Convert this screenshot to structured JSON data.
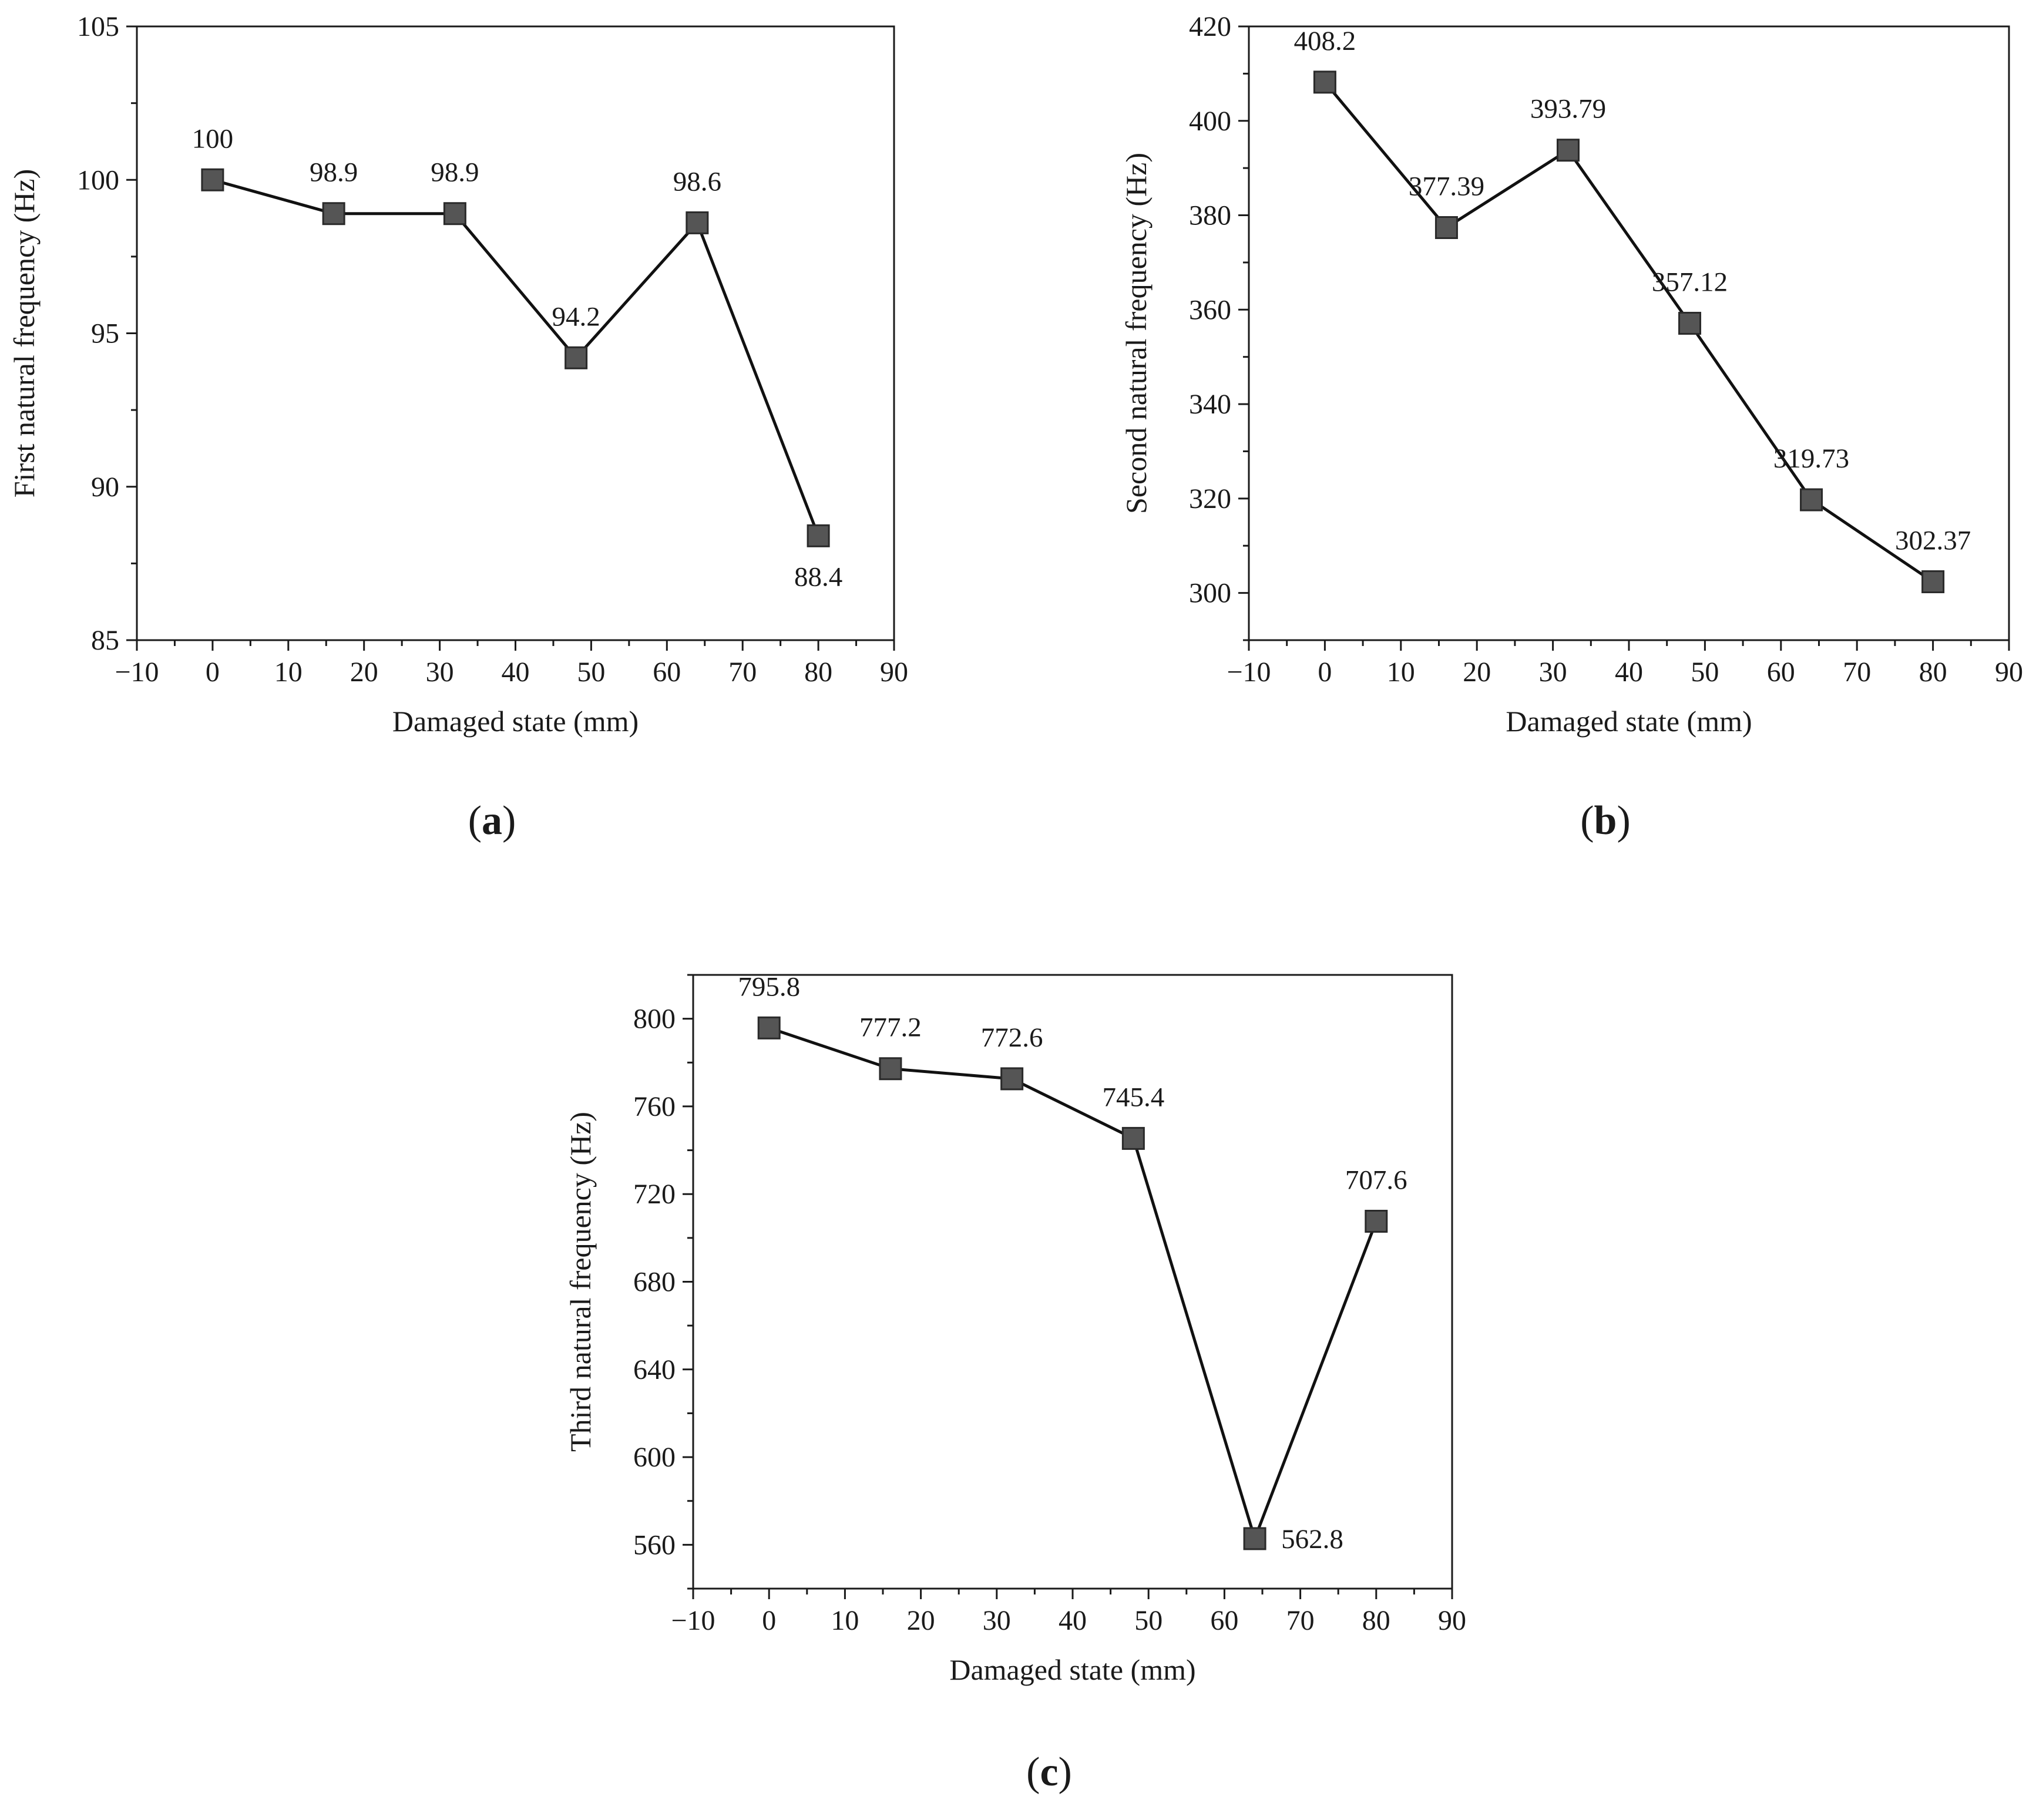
{
  "chart_data": [
    {
      "id": "a",
      "type": "line",
      "panel_label": "a",
      "xlabel": "Damaged state (mm)",
      "ylabel": "First natural frequency (Hz)",
      "xlim": [
        -10,
        90
      ],
      "ylim": [
        85,
        105
      ],
      "xticks": [
        -10,
        0,
        10,
        20,
        30,
        40,
        50,
        60,
        70,
        80,
        90
      ],
      "xtick_labels": [
        "−10",
        "0",
        "10",
        "20",
        "30",
        "40",
        "50",
        "60",
        "70",
        "80",
        "90"
      ],
      "yticks": [
        85,
        90,
        95,
        100,
        105
      ],
      "ytick_labels": [
        "85",
        "90",
        "95",
        "100",
        "105"
      ],
      "series": [
        {
          "name": "First natural frequency",
          "x": [
            0,
            16,
            32,
            48,
            64,
            80
          ],
          "values": [
            100,
            98.9,
            98.9,
            94.2,
            98.6,
            88.4
          ],
          "labels": [
            "100",
            "98.9",
            "98.9",
            "94.2",
            "98.6",
            "88.4"
          ],
          "label_positions": [
            "above",
            "above",
            "above",
            "above",
            "above",
            "below"
          ]
        }
      ],
      "color": "#555555"
    },
    {
      "id": "b",
      "type": "line",
      "panel_label": "b",
      "xlabel": "Damaged state (mm)",
      "ylabel": "Second natural frequency (Hz)",
      "xlim": [
        -10,
        90
      ],
      "ylim": [
        290,
        420
      ],
      "xticks": [
        -10,
        0,
        10,
        20,
        30,
        40,
        50,
        60,
        70,
        80,
        90
      ],
      "xtick_labels": [
        "−10",
        "0",
        "10",
        "20",
        "30",
        "40",
        "50",
        "60",
        "70",
        "80",
        "90"
      ],
      "yticks": [
        300,
        320,
        340,
        360,
        380,
        400,
        420
      ],
      "ytick_labels": [
        "300",
        "320",
        "340",
        "360",
        "380",
        "400",
        "420"
      ],
      "series": [
        {
          "name": "Second natural frequency",
          "x": [
            0,
            16,
            32,
            48,
            64,
            80
          ],
          "values": [
            408.2,
            377.39,
            393.79,
            357.12,
            319.73,
            302.37
          ],
          "labels": [
            "408.2",
            "377.39",
            "393.79",
            "357.12",
            "319.73",
            "302.37"
          ],
          "label_positions": [
            "above",
            "above",
            "above",
            "above",
            "above",
            "above"
          ]
        }
      ],
      "color": "#555555"
    },
    {
      "id": "c",
      "type": "line",
      "panel_label": "c",
      "xlabel": "Damaged state (mm)",
      "ylabel": "Third natural frequency (Hz)",
      "xlim": [
        -10,
        90
      ],
      "ylim": [
        540,
        820
      ],
      "xticks": [
        -10,
        0,
        10,
        20,
        30,
        40,
        50,
        60,
        70,
        80,
        90
      ],
      "xtick_labels": [
        "−10",
        "0",
        "10",
        "20",
        "30",
        "40",
        "50",
        "60",
        "70",
        "80",
        "90"
      ],
      "yticks": [
        560,
        600,
        640,
        680,
        720,
        760,
        800
      ],
      "ytick_labels": [
        "560",
        "600",
        "640",
        "680",
        "720",
        "760",
        "800"
      ],
      "series": [
        {
          "name": "Third natural frequency",
          "x": [
            0,
            16,
            32,
            48,
            64,
            80
          ],
          "values": [
            795.8,
            777.2,
            772.6,
            745.4,
            562.8,
            707.6
          ],
          "labels": [
            "795.8",
            "777.2",
            "772.6",
            "745.4",
            "562.8",
            "707.6"
          ],
          "label_positions": [
            "above",
            "above",
            "above",
            "above",
            "right",
            "above"
          ]
        }
      ],
      "color": "#555555"
    }
  ]
}
